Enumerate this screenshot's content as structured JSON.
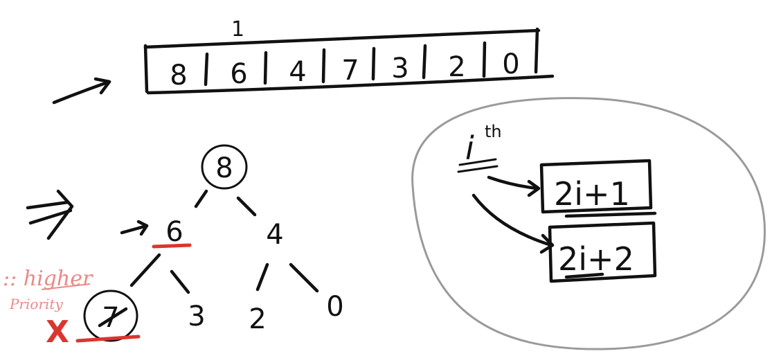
{
  "array": {
    "index_label": "1",
    "cells": [
      "8",
      "6",
      "4",
      "7",
      "3",
      "2",
      "0"
    ]
  },
  "tree": {
    "nodes": [
      {
        "id": "root",
        "value": "8"
      },
      {
        "id": "left",
        "value": "6"
      },
      {
        "id": "right",
        "value": "4"
      },
      {
        "id": "left-left",
        "value": "7"
      },
      {
        "id": "left-right",
        "value": "3"
      },
      {
        "id": "right-left",
        "value": "2"
      },
      {
        "id": "right-right",
        "value": "0"
      }
    ]
  },
  "side_note": {
    "line1": ":: higher",
    "line2": "Priority",
    "mark": "X"
  },
  "formula": {
    "index_symbol": "i",
    "superscript": "th",
    "left_child": "2i+1",
    "right_child": "2i+2"
  },
  "colors": {
    "ink": "#111111",
    "annotation": "#d9362f",
    "note": "#e88a86",
    "bubble": "#9a9a9a"
  }
}
